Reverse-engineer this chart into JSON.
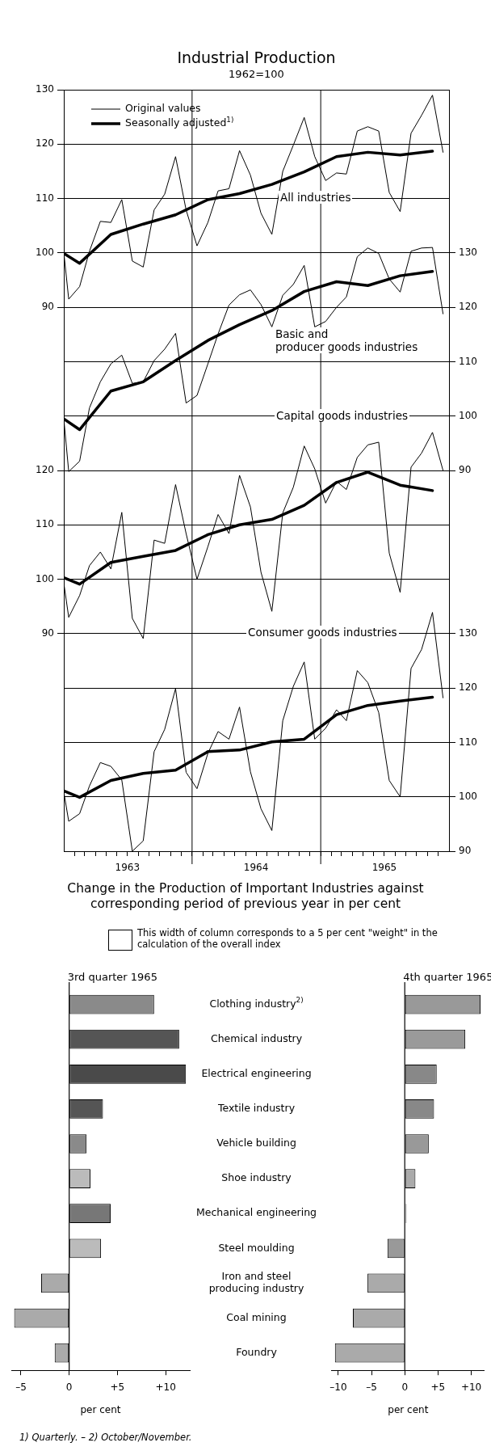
{
  "chart_data": [
    {
      "type": "line",
      "title": "Industrial Production",
      "subtitle": "1962=100",
      "legend": "top left",
      "marker": "none",
      "grid": "y",
      "tick_labels": "y",
      "x": [
        "1963-01-01",
        "1963-01-15",
        "1963-02-15",
        "1963-03-15",
        "1963-04-15",
        "1963-05-15",
        "1963-06-15",
        "1963-07-15",
        "1963-08-15",
        "1963-09-15",
        "1963-10-15",
        "1963-11-15",
        "1963-12-15",
        "1964-01-15",
        "1964-02-15",
        "1964-03-15",
        "1964-04-15",
        "1964-05-15",
        "1964-06-15",
        "1964-07-15",
        "1964-08-15",
        "1964-09-15",
        "1964-10-15",
        "1964-11-15",
        "1964-12-15",
        "1965-01-15",
        "1965-02-15",
        "1965-03-15",
        "1965-04-15",
        "1965-05-15",
        "1965-06-15",
        "1965-07-15",
        "1965-08-15",
        "1965-09-15",
        "1965-10-15",
        "1965-11-15",
        "1965-12-15"
      ],
      "xlim": [
        "1963-01-01",
        "1966-01-01"
      ],
      "ylim": [
        -10,
        130
      ],
      "yticks": [
        90,
        100,
        110,
        120,
        130
      ],
      "y2lim": [
        20,
        160
      ],
      "y2ticks": [
        90,
        100,
        110,
        120,
        130
      ],
      "series": [
        {
          "name": "Original values",
          "color": "#000000",
          "values": [
            100.1,
            91.5,
            93.8,
            100.3,
            105.8,
            105.6,
            109.8,
            98.5,
            97.4,
            107.9,
            110.8,
            117.7,
            107.9,
            101.3,
            105.6,
            111.4,
            111.8,
            118.8,
            114.3,
            107.3,
            103.4,
            115.0,
            119.8,
            124.9,
            117.7,
            113.3,
            114.7,
            114.5,
            122.4,
            123.2,
            122.4,
            111.1,
            107.6,
            122.0,
            125.3,
            129.0,
            118.5
          ]
        },
        {
          "name": "Seasonally adjusted$^{1)}$",
          "color": "#000000",
          "x": [
            "1963-01-01",
            "1963-02-15",
            "1963-05-15",
            "1963-08-15",
            "1963-11-15",
            "1964-02-15",
            "1964-05-15",
            "1964-08-15",
            "1964-11-15",
            "1965-02-15",
            "1965-05-15",
            "1965-08-15",
            "1965-11-15"
          ],
          "values": [
            99.9,
            98.1,
            103.4,
            105.3,
            107.0,
            109.8,
            110.9,
            112.6,
            114.9,
            117.7,
            118.5,
            118.0,
            118.7
          ]
        },
        {
          "color": "#000000",
          "axis": "y2",
          "values": [
            99.5,
            89.8,
            91.7,
            101.5,
            106.3,
            109.6,
            111.2,
            106.0,
            106.3,
            110.2,
            112.3,
            115.2,
            102.4,
            103.8,
            109.6,
            115.1,
            120.4,
            122.3,
            123.2,
            120.5,
            116.4,
            122.2,
            124.2,
            127.7,
            116.4,
            117.4,
            120.0,
            121.9,
            129.3,
            130.9,
            129.9,
            125.2,
            122.8,
            130.3,
            130.9,
            131.0,
            118.8
          ]
        },
        {
          "color": "#000000",
          "axis": "y2",
          "x": [
            "1963-01-01",
            "1963-02-15",
            "1963-05-15",
            "1963-08-15",
            "1963-11-15",
            "1964-02-15",
            "1964-05-15",
            "1964-08-15",
            "1964-11-15",
            "1965-02-15",
            "1965-05-15",
            "1965-08-15",
            "1965-11-15"
          ],
          "values": [
            99.5,
            97.5,
            104.6,
            106.3,
            110.2,
            113.9,
            116.8,
            119.4,
            122.9,
            124.7,
            124.0,
            125.8,
            126.6
          ]
        }
      ],
      "annotations": [
        "All industries",
        "Basic and\nproducer goods industries"
      ]
    },
    {
      "type": "line",
      "marker": "none",
      "grid": "y",
      "x": [
        "1963-01-01",
        "1963-01-15",
        "1963-02-15",
        "1963-03-15",
        "1963-04-15",
        "1963-05-15",
        "1963-06-15",
        "1963-07-15",
        "1963-08-15",
        "1963-09-15",
        "1963-10-15",
        "1963-11-15",
        "1963-12-15",
        "1964-01-15",
        "1964-02-15",
        "1964-03-15",
        "1964-04-15",
        "1964-05-15",
        "1964-06-15",
        "1964-07-15",
        "1964-08-15",
        "1964-09-15",
        "1964-10-15",
        "1964-11-15",
        "1964-12-15",
        "1965-01-15",
        "1965-02-15",
        "1965-03-15",
        "1965-04-15",
        "1965-05-15",
        "1965-06-15",
        "1965-07-15",
        "1965-08-15",
        "1965-09-15",
        "1965-10-15",
        "1965-11-15",
        "1965-12-15"
      ],
      "xlim": [
        "1963-01-01",
        "1966-01-01"
      ],
      "xticks": [
        {
          "value": "1963-02-01",
          "label": null
        },
        {
          "value": "1963-03-01",
          "label": null
        },
        {
          "value": "1963-04-01",
          "label": null
        },
        {
          "value": "1963-05-01",
          "label": null
        },
        {
          "value": "1963-06-01",
          "label": null
        },
        {
          "value": "1963-07-01",
          "label": "1963"
        },
        {
          "value": "1963-08-01",
          "label": null
        },
        {
          "value": "1963-09-01",
          "label": null
        },
        {
          "value": "1963-10-01",
          "label": null
        },
        {
          "value": "1963-11-01",
          "label": null
        },
        {
          "value": "1963-12-01",
          "label": null
        },
        {
          "value": "1964-01-01",
          "label": null
        },
        {
          "value": "1964-02-01",
          "label": null
        },
        {
          "value": "1964-03-01",
          "label": null
        },
        {
          "value": "1964-04-01",
          "label": null
        },
        {
          "value": "1964-05-01",
          "label": null
        },
        {
          "value": "1964-06-01",
          "label": null
        },
        {
          "value": "1964-07-01",
          "label": "1964"
        },
        {
          "value": "1964-08-01",
          "label": null
        },
        {
          "value": "1964-09-01",
          "label": null
        },
        {
          "value": "1964-10-01",
          "label": null
        },
        {
          "value": "1964-11-01",
          "label": null
        },
        {
          "value": "1964-12-01",
          "label": null
        },
        {
          "value": "1965-01-01",
          "label": null
        },
        {
          "value": "1965-02-01",
          "label": null
        },
        {
          "value": "1965-03-01",
          "label": null
        },
        {
          "value": "1965-04-01",
          "label": null
        },
        {
          "value": "1965-05-01",
          "label": null
        },
        {
          "value": "1965-06-01",
          "label": null
        },
        {
          "value": "1965-07-01",
          "label": "1965"
        },
        {
          "value": "1965-08-01",
          "label": null
        },
        {
          "value": "1965-09-01",
          "label": null
        },
        {
          "value": "1965-10-01",
          "label": null
        },
        {
          "value": "1965-11-01",
          "label": null
        },
        {
          "value": "1965-12-01",
          "label": null
        }
      ],
      "ylim": [
        50,
        190
      ],
      "yticks": [
        90,
        100,
        110,
        120
      ],
      "y2lim": [
        90,
        230
      ],
      "y2ticks": [
        90,
        100,
        110,
        120,
        130
      ],
      "series": [
        {
          "color": "#000000",
          "values": [
            99.3,
            93.0,
            97.0,
            102.5,
            105.0,
            101.9,
            112.3,
            92.8,
            89.1,
            107.2,
            106.6,
            117.4,
            108.4,
            100.0,
            106.0,
            111.9,
            108.4,
            119.1,
            113.3,
            101.3,
            94.1,
            112.2,
            116.9,
            124.5,
            120.3,
            114.0,
            118.0,
            116.5,
            122.4,
            124.7,
            125.2,
            104.8,
            97.6,
            120.6,
            123.2,
            127.0,
            120.0
          ]
        },
        {
          "color": "#000000",
          "x": [
            "1963-01-01",
            "1963-02-15",
            "1963-05-15",
            "1963-08-15",
            "1963-11-15",
            "1964-02-15",
            "1964-05-15",
            "1964-08-15",
            "1964-11-15",
            "1965-02-15",
            "1965-05-15",
            "1965-08-15",
            "1965-11-15"
          ],
          "values": [
            100.3,
            99.1,
            103.1,
            104.2,
            105.3,
            108.2,
            110.0,
            111.0,
            113.6,
            117.8,
            119.7,
            117.3,
            116.3
          ]
        },
        {
          "color": "#000000",
          "axis": "y2",
          "values": [
            100.9,
            95.5,
            96.9,
            102.0,
            106.3,
            105.6,
            103.1,
            90.0,
            91.9,
            108.3,
            112.4,
            119.9,
            104.5,
            101.5,
            108.0,
            112.0,
            110.6,
            116.5,
            104.6,
            97.8,
            93.8,
            114.0,
            120.3,
            124.8,
            110.6,
            112.6,
            116.0,
            114.0,
            123.2,
            121.0,
            115.5,
            103.0,
            100.0,
            123.6,
            127.1,
            133.9,
            118.2
          ]
        },
        {
          "color": "#000000",
          "axis": "y2",
          "x": [
            "1963-01-01",
            "1963-02-15",
            "1963-05-15",
            "1963-08-15",
            "1963-11-15",
            "1964-02-15",
            "1964-05-15",
            "1964-08-15",
            "1964-11-15",
            "1965-02-15",
            "1965-05-15",
            "1965-08-15",
            "1965-11-15"
          ],
          "values": [
            101.1,
            99.9,
            103.0,
            104.3,
            104.9,
            108.3,
            108.6,
            110.1,
            110.6,
            115.1,
            116.8,
            117.6,
            118.3
          ]
        }
      ],
      "ref_lines": [
        {
          "axis": "x",
          "value": "1964-01-01"
        },
        {
          "axis": "x",
          "value": "1965-01-01"
        }
      ],
      "annotations": [
        "Capital goods industries",
        "Consumer goods industries"
      ]
    },
    {
      "type": "bar",
      "orientation": "horizontal",
      "title": "3rd quarter 1965",
      "xlabel": "per cent",
      "categories": [
        "Clothing industry$^{2)}$",
        "Chemical industry",
        "Electrical engineering",
        "Textile industry",
        "Vehicle building",
        "Shoe industry",
        "Mechanical engineering",
        "Steel moulding",
        "Iron and steel producing industry",
        "Coal mining",
        "Foundry"
      ],
      "values": [
        8.8,
        11.4,
        12.1,
        3.5,
        1.8,
        2.2,
        4.3,
        3.3,
        -2.9,
        -5.7,
        -1.5
      ],
      "colors": [
        "#8a8a8a",
        "#555555",
        "#4a4a4a",
        "#555555",
        "#8a8a8a",
        "#bbbbbb",
        "#777777",
        "#bbbbbb",
        "#aaaaaa",
        "#aaaaaa",
        "#aaaaaa"
      ],
      "xlim": [
        -6,
        12.5
      ],
      "xticks": [
        {
          "value": -5,
          "label": "–5"
        },
        0,
        {
          "value": 5,
          "label": "+5"
        },
        {
          "value": 10,
          "label": "+10"
        }
      ],
      "annotations": [
        "Change in the Production of Important Industries against corresponding period of previous year in per cent",
        "This width of column corresponds to a 5 per cent \"weight\" in the calculation of the overall index",
        "1) Quarterly. – 2) October/November."
      ]
    },
    {
      "type": "bar",
      "orientation": "horizontal",
      "title": "4th quarter 1965",
      "xlabel": "per cent",
      "tick_labels": "x",
      "categories": [
        null,
        null,
        null,
        null,
        null,
        null,
        null,
        null,
        null,
        null,
        null
      ],
      "values": [
        11.4,
        9.1,
        4.8,
        4.4,
        3.6,
        1.6,
        0.3,
        -2.6,
        -5.6,
        -7.8,
        -10.5
      ],
      "colors": [
        "#999999",
        "#9a9a9a",
        "#888888",
        "#888888",
        "#999999",
        "#aaaaaa",
        "#cccccc",
        "#999999",
        "#aaaaaa",
        "#aaaaaa",
        "#aaaaaa"
      ],
      "xlim": [
        -11,
        12
      ],
      "xticks": [
        {
          "value": -10,
          "label": "–10"
        },
        {
          "value": -5,
          "label": "–5"
        },
        0,
        {
          "value": 5,
          "label": "+5"
        },
        {
          "value": 10,
          "label": "+10"
        }
      ]
    }
  ]
}
